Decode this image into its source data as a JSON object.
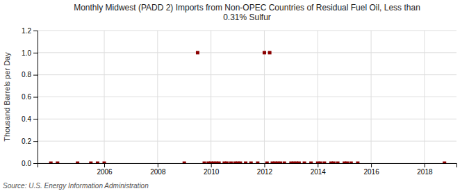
{
  "chart_data": {
    "type": "scatter",
    "title": "Monthly Midwest (PADD 2) Imports from Non-OPEC Countries of Residual Fuel Oil, Less than\n0.31% Sulfur",
    "y_label": "Thousand Barrels per Day",
    "annotations": [
      "Source: U.S. Energy Information Administration"
    ],
    "color": "#8b0000",
    "marker": "square",
    "grid": true,
    "xlim": [
      2003.5,
      2019.2
    ],
    "xticks": [
      2006,
      2008,
      2010,
      2012,
      2014,
      2016,
      2018
    ],
    "ylim": [
      0.0,
      1.2
    ],
    "yticks": [
      {
        "value": 0.0,
        "label": "0.0"
      },
      0.2,
      0.4,
      0.6,
      0.8,
      {
        "value": 1.0,
        "label": "1.0"
      },
      1.2
    ],
    "x": [
      2004.0,
      2004.25,
      2005.0,
      2005.5,
      2005.75,
      2006.0,
      2009.0,
      2009.5,
      2009.75,
      2009.9,
      2010.0,
      2010.1,
      2010.2,
      2010.3,
      2010.5,
      2010.6,
      2010.75,
      2010.9,
      2011.0,
      2011.1,
      2011.3,
      2011.5,
      2011.75,
      2012.0,
      2012.1,
      2012.2,
      2012.3,
      2012.4,
      2012.5,
      2012.6,
      2012.75,
      2013.0,
      2013.1,
      2013.2,
      2013.3,
      2013.5,
      2013.75,
      2014.0,
      2014.1,
      2014.25,
      2014.5,
      2014.6,
      2014.75,
      2015.0,
      2015.1,
      2015.25,
      2015.5,
      2018.75
    ],
    "values": [
      0.0,
      0.0,
      0.0,
      0.0,
      0.0,
      0.0,
      0.0,
      1.0,
      0.0,
      0.0,
      0.0,
      0.0,
      0.0,
      0.0,
      0.0,
      0.0,
      0.0,
      0.0,
      0.0,
      0.0,
      0.0,
      0.0,
      0.0,
      1.0,
      0.0,
      1.0,
      0.0,
      0.0,
      0.0,
      0.0,
      0.0,
      0.0,
      0.0,
      0.0,
      0.0,
      0.0,
      0.0,
      0.0,
      0.0,
      0.0,
      0.0,
      0.0,
      0.0,
      0.0,
      0.0,
      0.0,
      0.0,
      0.0
    ]
  }
}
